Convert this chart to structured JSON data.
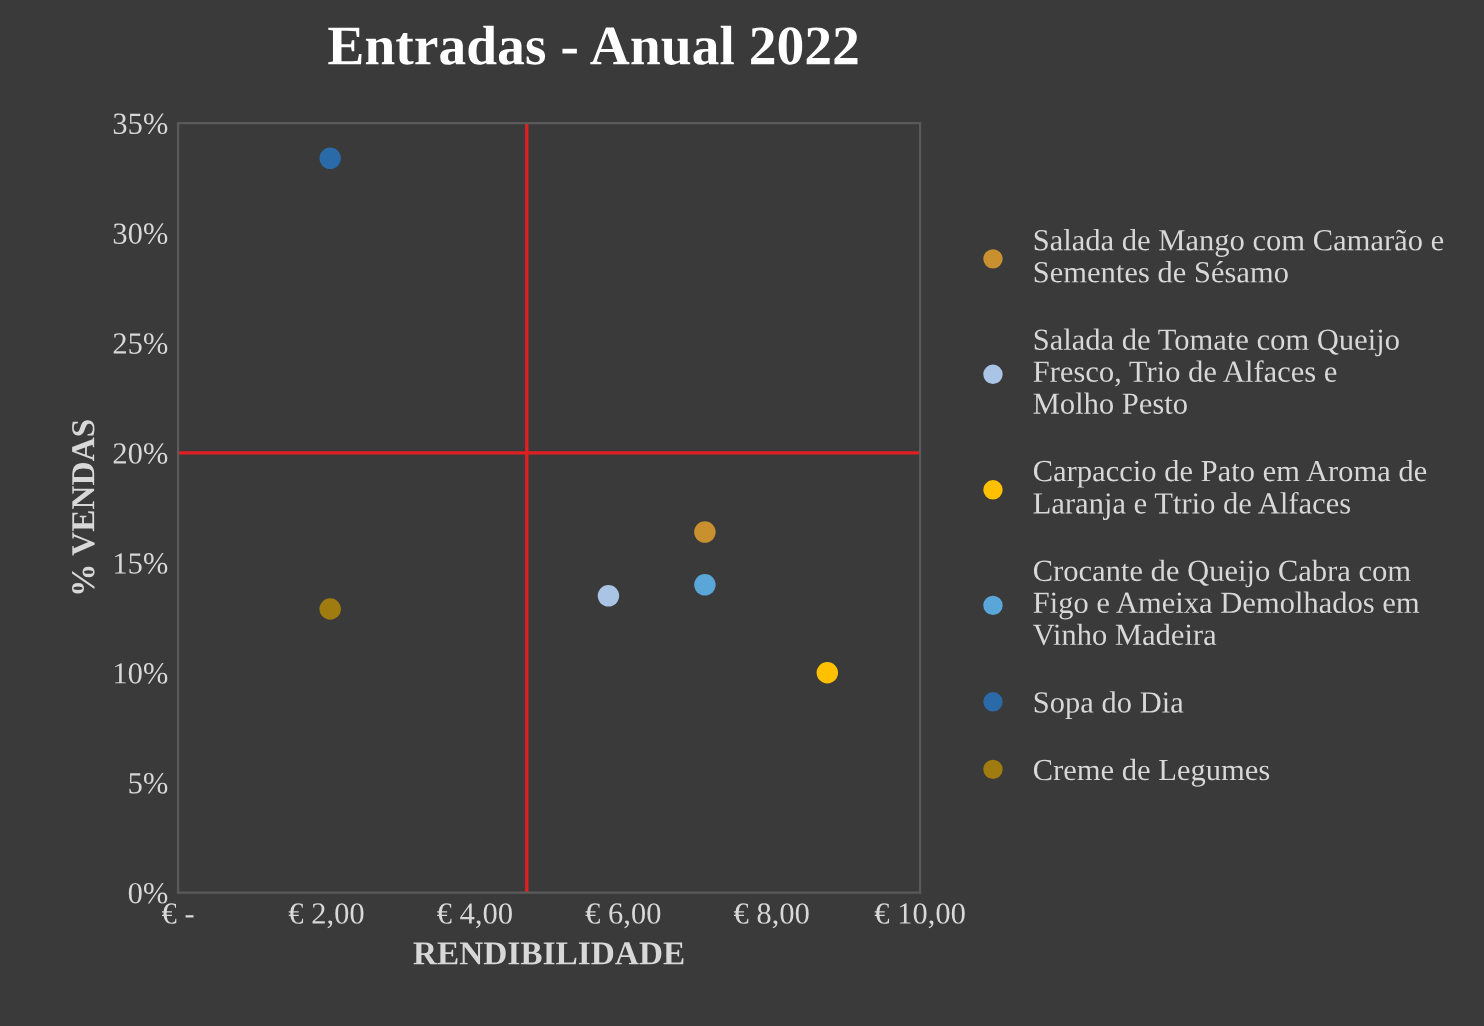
{
  "chart_data": {
    "type": "scatter",
    "title": "Entradas - Anual 2022",
    "xlabel": "RENDIBILIDADE",
    "ylabel": "% VENDAS",
    "xlim": [
      0,
      10
    ],
    "xticks": [
      {
        "value": 0,
        "label": "€ -"
      },
      {
        "value": 2,
        "label": "€ 2,00"
      },
      {
        "value": 4,
        "label": "€ 4,00"
      },
      {
        "value": 6,
        "label": "€ 6,00"
      },
      {
        "value": 8,
        "label": "€ 8,00"
      },
      {
        "value": 10,
        "label": "€ 10,00"
      }
    ],
    "ylim": [
      0,
      35
    ],
    "yticks": [
      {
        "value": 0,
        "label": "0%"
      },
      {
        "value": 5,
        "label": "5%"
      },
      {
        "value": 10,
        "label": "10%"
      },
      {
        "value": 15,
        "label": "15%"
      },
      {
        "value": 20,
        "label": "20%"
      },
      {
        "value": 25,
        "label": "25%"
      },
      {
        "value": 30,
        "label": "30%"
      },
      {
        "value": 35,
        "label": "35%"
      }
    ],
    "series": [
      {
        "name": "Salada de Mango com Camarão e Sementes de Sésamo",
        "color": "#c8902e",
        "x": [
          7.1
        ],
        "values": [
          16.4
        ]
      },
      {
        "name": "Salada de Tomate com Queijo Fresco, Trio de Alfaces e Molho Pesto",
        "color": "#a9c4e4",
        "x": [
          5.8
        ],
        "values": [
          13.5
        ]
      },
      {
        "name": "Carpaccio de Pato em Aroma de Laranja e Ttrio de Alfaces",
        "color": "#ffc000",
        "x": [
          8.75
        ],
        "values": [
          10
        ]
      },
      {
        "name": "Crocante de Queijo Cabra com Figo e Ameixa Demolhados em Vinho Madeira",
        "color": "#5aa6d8",
        "x": [
          7.1
        ],
        "values": [
          14
        ]
      },
      {
        "name": "Sopa do Dia",
        "color": "#2a6aa8",
        "x": [
          2.05
        ],
        "values": [
          33.4
        ]
      },
      {
        "name": "Creme de Legumes",
        "color": "#a07c10",
        "x": [
          2.05
        ],
        "values": [
          12.9
        ]
      }
    ],
    "ref_lines": [
      {
        "axis": "x",
        "value": 4.7,
        "color": "#e02020"
      },
      {
        "axis": "y",
        "value": 20,
        "color": "#e02020"
      }
    ],
    "marker": "circle",
    "grid": false,
    "legend": "right"
  }
}
